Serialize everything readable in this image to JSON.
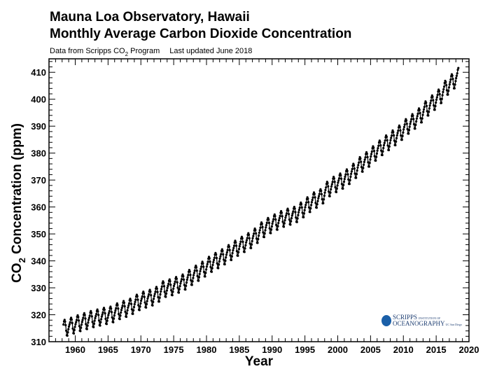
{
  "chart_data": {
    "type": "line",
    "title": "Mauna Loa Observatory, Hawaii",
    "subtitle": "Monthly Average Carbon Dioxide Concentration",
    "source_note": {
      "prefix": "Data from Scripps CO",
      "sub": "2",
      "suffix": " Program",
      "updated": "Last updated June 2018"
    },
    "xlabel": "Year",
    "ylabel": {
      "prefix": "CO",
      "sub": "2",
      "suffix": " Concentration (ppm)"
    },
    "xlim": [
      1956,
      2020
    ],
    "ylim": [
      310,
      415
    ],
    "x_ticks": [
      1960,
      1965,
      1970,
      1975,
      1980,
      1985,
      1990,
      1995,
      2000,
      2005,
      2010,
      2015,
      2020
    ],
    "y_ticks": [
      310,
      320,
      330,
      340,
      350,
      360,
      370,
      380,
      390,
      400,
      410
    ],
    "grid": false,
    "marker": "filled-circle",
    "series_color": "#000000",
    "start": "1958-03",
    "end": "2018-05",
    "annual_mean_years": [
      1958,
      1959,
      1960,
      1961,
      1962,
      1963,
      1964,
      1965,
      1966,
      1967,
      1968,
      1969,
      1970,
      1971,
      1972,
      1973,
      1974,
      1975,
      1976,
      1977,
      1978,
      1979,
      1980,
      1981,
      1982,
      1983,
      1984,
      1985,
      1986,
      1987,
      1988,
      1989,
      1990,
      1991,
      1992,
      1993,
      1994,
      1995,
      1996,
      1997,
      1998,
      1999,
      2000,
      2001,
      2002,
      2003,
      2004,
      2005,
      2006,
      2007,
      2008,
      2009,
      2010,
      2011,
      2012,
      2013,
      2014,
      2015,
      2016,
      2017,
      2018
    ],
    "annual_mean_ppm": [
      315.2,
      315.97,
      316.91,
      317.64,
      318.45,
      318.99,
      319.62,
      320.04,
      321.37,
      322.18,
      323.05,
      324.62,
      325.68,
      326.32,
      327.45,
      329.68,
      330.18,
      331.11,
      332.04,
      333.83,
      335.4,
      336.84,
      338.75,
      340.11,
      341.45,
      343.05,
      344.65,
      346.12,
      347.42,
      349.19,
      351.57,
      353.12,
      354.39,
      355.61,
      356.45,
      357.1,
      358.83,
      360.82,
      362.61,
      363.73,
      366.7,
      368.38,
      369.55,
      371.14,
      373.28,
      375.8,
      377.52,
      379.8,
      381.9,
      383.79,
      385.6,
      387.43,
      389.9,
      391.65,
      393.85,
      396.52,
      398.65,
      400.83,
      404.24,
      406.55,
      408.9
    ],
    "seasonal_cycle_ppm": [
      0.0,
      0.7,
      1.4,
      2.5,
      3.0,
      2.3,
      0.9,
      -1.2,
      -3.0,
      -3.2,
      -2.0,
      -0.9
    ]
  },
  "logo": {
    "line1": "SCRIPPS",
    "line1_small": "INSTITUTION OF",
    "line2": "OCEANOGRAPHY",
    "line2_small": "UC San Diego",
    "color": "#1a5fa8"
  }
}
